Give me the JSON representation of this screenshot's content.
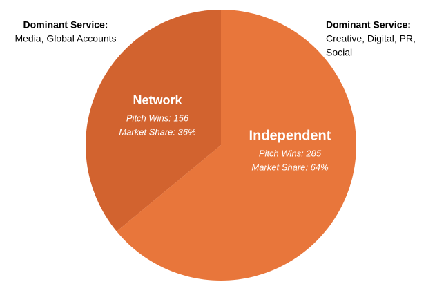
{
  "chart_data": {
    "type": "pie",
    "categories": [
      "Network",
      "Independent"
    ],
    "values": [
      36,
      64
    ],
    "value_labels": [
      "Market Share: 36%",
      "Market Share: 64%"
    ],
    "pitch_win_labels": [
      "Pitch Wins: 156",
      "Pitch Wins: 285"
    ],
    "colors": [
      "#d2632f",
      "#e8763b"
    ],
    "annotations": [
      {
        "title": "Dominant Service:",
        "lines": [
          "Media, Global Accounts"
        ]
      },
      {
        "title": "Dominant Service:",
        "lines": [
          "Creative, Digital, PR,",
          "Social"
        ]
      }
    ]
  }
}
